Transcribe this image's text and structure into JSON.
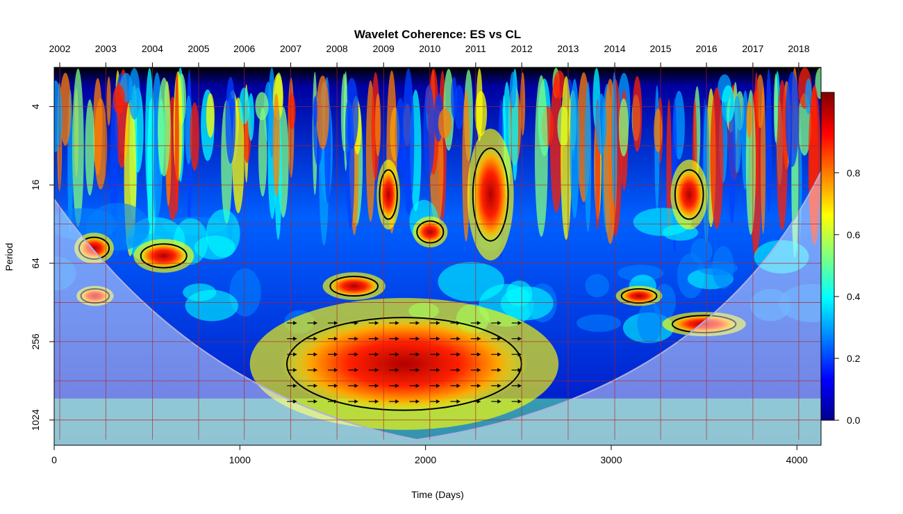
{
  "chart_data": {
    "type": "heatmap",
    "title": "Wavelet Coherence: ES vs CL",
    "xlabel": "Time (Days)",
    "ylabel": "Period",
    "xlim": [
      0,
      4130
    ],
    "x_ticks": [
      {
        "value": 0,
        "label": "0"
      },
      {
        "value": 1000,
        "label": "1000"
      },
      {
        "value": 2000,
        "label": "2000"
      },
      {
        "value": 3000,
        "label": "3000"
      },
      {
        "value": 4000,
        "label": "4000"
      }
    ],
    "y_scale": "log2",
    "ylim": [
      2,
      1600
    ],
    "y_ticks": [
      {
        "value": 4,
        "label": "4"
      },
      {
        "value": 16,
        "label": "16"
      },
      {
        "value": 64,
        "label": "64"
      },
      {
        "value": 256,
        "label": "256"
      },
      {
        "value": 1024,
        "label": "1024"
      }
    ],
    "top_axis": [
      {
        "value": 30,
        "label": "2002"
      },
      {
        "value": 278,
        "label": "2003"
      },
      {
        "value": 529,
        "label": "2004"
      },
      {
        "value": 778,
        "label": "2005"
      },
      {
        "value": 1024,
        "label": "2006"
      },
      {
        "value": 1274,
        "label": "2007"
      },
      {
        "value": 1523,
        "label": "2008"
      },
      {
        "value": 1774,
        "label": "2009"
      },
      {
        "value": 2023,
        "label": "2010"
      },
      {
        "value": 2270,
        "label": "2011"
      },
      {
        "value": 2518,
        "label": "2012"
      },
      {
        "value": 2768,
        "label": "2013"
      },
      {
        "value": 3019,
        "label": "2014"
      },
      {
        "value": 3266,
        "label": "2015"
      },
      {
        "value": 3513,
        "label": "2016"
      },
      {
        "value": 3763,
        "label": "2017"
      },
      {
        "value": 4010,
        "label": "2018"
      }
    ],
    "colorbar": {
      "range": [
        0,
        1
      ],
      "ticks": [
        {
          "value": 0.0,
          "label": "0.0"
        },
        {
          "value": 0.2,
          "label": "0.2"
        },
        {
          "value": 0.4,
          "label": "0.4"
        },
        {
          "value": 0.6,
          "label": "0.6"
        },
        {
          "value": 0.8,
          "label": "0.8"
        }
      ],
      "colormap": "jet",
      "colors": [
        "#00008F",
        "#0000FF",
        "#0080FF",
        "#00FFFF",
        "#80FF80",
        "#FFFF00",
        "#FF8000",
        "#FF0000",
        "#800000"
      ]
    },
    "high_coherence_regions": [
      {
        "x": [
          1220,
          2550
        ],
        "period": [
          160,
          900
        ],
        "coherence": 0.9
      },
      {
        "x": [
          130,
          300
        ],
        "period": [
          40,
          60
        ],
        "coherence": 0.85
      },
      {
        "x": [
          460,
          720
        ],
        "period": [
          45,
          70
        ],
        "coherence": 0.85
      },
      {
        "x": [
          140,
          300
        ],
        "period": [
          100,
          130
        ],
        "coherence": 0.85
      },
      {
        "x": [
          1950,
          2100
        ],
        "period": [
          30,
          45
        ],
        "coherence": 0.85
      },
      {
        "x": [
          1480,
          1750
        ],
        "period": [
          80,
          115
        ],
        "coherence": 0.8
      },
      {
        "x": [
          3050,
          3250
        ],
        "period": [
          100,
          130
        ],
        "coherence": 0.8
      },
      {
        "x": [
          3320,
          3680
        ],
        "period": [
          160,
          220
        ],
        "coherence": 0.8
      },
      {
        "x": [
          2250,
          2450
        ],
        "period": [
          8,
          45
        ],
        "coherence": 0.85
      },
      {
        "x": [
          3340,
          3500
        ],
        "period": [
          12,
          30
        ],
        "coherence": 0.85
      },
      {
        "x": [
          1750,
          1850
        ],
        "period": [
          12,
          30
        ],
        "coherence": 0.8
      }
    ],
    "arrow_field": {
      "x": [
        1220,
        2550
      ],
      "period": [
        160,
        800
      ],
      "direction": "right"
    },
    "cone_of_influence": true,
    "grid": true,
    "legend": "right"
  }
}
